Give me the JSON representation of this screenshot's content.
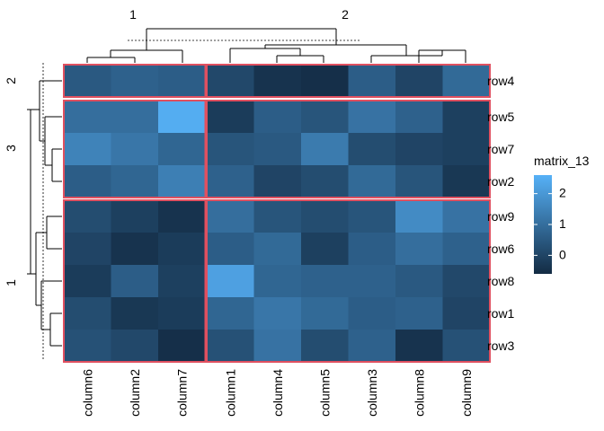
{
  "chart_data": {
    "type": "heatmap",
    "legend_title": "matrix_13",
    "legend_ticks": [
      2,
      1,
      0
    ],
    "legend_range": [
      -0.6,
      2.6
    ],
    "colors": {
      "low": "#132B43",
      "high": "#56B1F7",
      "slice_border": "#e05060"
    },
    "column_slices": [
      {
        "label": "1",
        "columns": [
          "column6",
          "column2",
          "column7"
        ]
      },
      {
        "label": "2",
        "columns": [
          "column1",
          "column4",
          "column5",
          "column3",
          "column8",
          "column9"
        ]
      }
    ],
    "row_slices": [
      {
        "label": "2",
        "rows": [
          "row4"
        ]
      },
      {
        "label": "3",
        "rows": [
          "row5",
          "row7",
          "row2"
        ]
      },
      {
        "label": "1",
        "rows": [
          "row9",
          "row6",
          "row8",
          "row1",
          "row3"
        ]
      }
    ],
    "columns": [
      "column6",
      "column2",
      "column7",
      "column1",
      "column4",
      "column5",
      "column3",
      "column8",
      "column9"
    ],
    "rows": [
      "row4",
      "row5",
      "row7",
      "row2",
      "row9",
      "row6",
      "row8",
      "row1",
      "row3"
    ],
    "values": [
      [
        0.5,
        0.7,
        0.6,
        0.1,
        -0.4,
        -0.5,
        0.6,
        0.0,
        0.9
      ],
      [
        1.0,
        1.0,
        2.5,
        -0.2,
        0.6,
        0.4,
        1.1,
        0.7,
        -0.1
      ],
      [
        1.5,
        1.2,
        0.8,
        0.4,
        0.5,
        1.3,
        0.2,
        0.0,
        -0.1
      ],
      [
        0.6,
        0.8,
        1.4,
        0.7,
        0.0,
        0.2,
        0.9,
        0.4,
        -0.3
      ],
      [
        0.2,
        -0.1,
        -0.4,
        1.0,
        0.4,
        0.2,
        0.4,
        1.7,
        1.1
      ],
      [
        0.0,
        -0.4,
        -0.2,
        0.6,
        0.9,
        -0.1,
        0.6,
        1.0,
        0.7
      ],
      [
        -0.2,
        0.6,
        -0.1,
        2.2,
        0.8,
        0.7,
        0.7,
        0.5,
        0.1
      ],
      [
        0.2,
        -0.3,
        -0.2,
        0.8,
        1.2,
        0.9,
        0.6,
        0.7,
        0.0
      ],
      [
        0.3,
        0.1,
        -0.5,
        0.3,
        1.1,
        0.2,
        0.7,
        -0.4,
        0.3
      ]
    ]
  }
}
